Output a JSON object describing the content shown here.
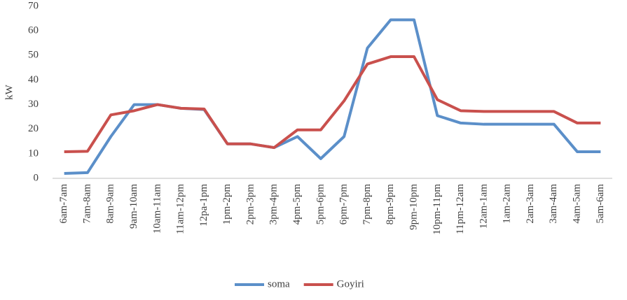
{
  "chart_data": {
    "type": "line",
    "y_label": "kW",
    "categories": [
      "6am-7am",
      "7am-8am",
      "8am-9am",
      "9am-10am",
      "10am-11am",
      "11am-12pm",
      "12pa-1pm",
      "1pm-2pm",
      "2pm-3pm",
      "3pm-4pm",
      "4pm-5pm",
      "5pm-6pm",
      "6pm-7pm",
      "7pm-8pm",
      "8pm-9pm",
      "9pm-10pm",
      "10pm-11pm",
      "11pm-12am",
      "12am-1am",
      "1am-2am",
      "2am-3am",
      "3am-4am",
      "4am-5am",
      "5am-6am"
    ],
    "series": [
      {
        "name": "soma",
        "color": "#5b8fc9",
        "values": [
          2,
          2.3,
          17,
          30,
          30,
          28.5,
          28,
          14,
          14,
          12.5,
          17,
          8,
          17,
          53,
          64.5,
          64.5,
          25.5,
          22.5,
          22,
          22,
          22,
          22,
          10.8,
          10.8
        ]
      },
      {
        "name": "Goyiri",
        "color": "#c9504d",
        "values": [
          10.8,
          11,
          25.8,
          27.5,
          30,
          28.5,
          28.2,
          14,
          14,
          12.5,
          19.7,
          19.7,
          31.5,
          46.5,
          49.5,
          49.5,
          32,
          27.5,
          27.2,
          27.2,
          27.2,
          27.2,
          22.5,
          22.5
        ]
      }
    ],
    "ylim": [
      0,
      70
    ],
    "yticks": [
      0,
      10,
      20,
      30,
      40,
      50,
      60,
      70
    ],
    "grid": false,
    "legend": "bottom"
  }
}
